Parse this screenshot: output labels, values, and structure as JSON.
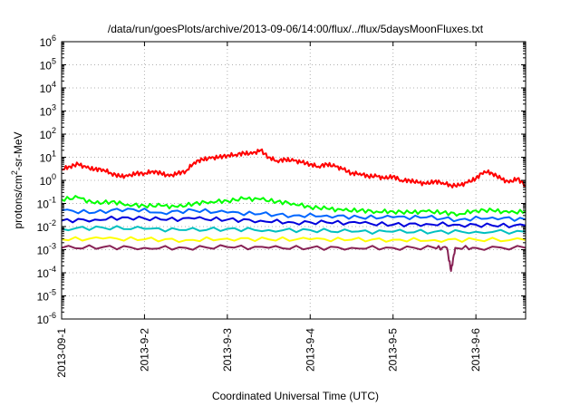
{
  "chart_data": {
    "type": "line",
    "title": "/data/run/goesPlots/archive/2013-09-06/14:00/flux/../flux/5daysMoonFluxes.txt",
    "xlabel": "Coordinated Universal Time (UTC)",
    "ylabel": "protons/cm2-sr-MeV",
    "ylabel_parts": {
      "base": "protons/cm",
      "sup": "2",
      "rest": "-sr-MeV"
    },
    "x_tick_labels": [
      "2013-09-1",
      "2013-9-2",
      "2013-9-3",
      "2013-9-4",
      "2013-9-5",
      "2013-9-6"
    ],
    "x_range_days": [
      0,
      5.6
    ],
    "y_scale": "log",
    "y_range_exponent": [
      -6,
      6
    ],
    "y_tick_base": "10",
    "y_tick_exponents": [
      "-6",
      "-5",
      "-4",
      "-3",
      "-2",
      "-1",
      "0",
      "1",
      "2",
      "3",
      "4",
      "5",
      "6"
    ],
    "grid": true,
    "series": [
      {
        "color": "#ff0000",
        "x": [
          0,
          0.1,
          0.2,
          0.3,
          0.4,
          0.5,
          0.6,
          0.7,
          0.8,
          0.9,
          1.0,
          1.1,
          1.2,
          1.3,
          1.4,
          1.5,
          1.6,
          1.7,
          1.8,
          1.9,
          2.0,
          2.1,
          2.2,
          2.3,
          2.4,
          2.5,
          2.6,
          2.7,
          2.8,
          2.9,
          3.0,
          3.1,
          3.2,
          3.3,
          3.4,
          3.5,
          3.6,
          3.7,
          3.8,
          3.9,
          4.0,
          4.1,
          4.2,
          4.3,
          4.4,
          4.5,
          4.6,
          4.7,
          4.8,
          4.9,
          5.0,
          5.1,
          5.2,
          5.3,
          5.4,
          5.5,
          5.6
        ],
        "y": [
          3,
          4,
          5,
          3.5,
          3,
          3,
          2,
          1.5,
          1.5,
          2,
          2,
          2.5,
          2,
          1.5,
          2,
          2.5,
          6,
          8,
          9,
          10,
          12,
          13,
          15,
          14,
          20,
          10,
          7,
          8,
          7,
          6,
          5,
          4,
          5,
          4,
          3,
          2,
          2,
          1.5,
          1.5,
          1.2,
          1.5,
          1,
          1,
          0.8,
          0.7,
          0.9,
          0.8,
          0.6,
          0.6,
          0.8,
          1.2,
          2.5,
          2,
          1.2,
          0.8,
          1.2,
          0.6
        ]
      },
      {
        "color": "#00ff00",
        "x": [
          0,
          0.2,
          0.4,
          0.6,
          0.8,
          1.0,
          1.2,
          1.4,
          1.6,
          1.8,
          2.0,
          2.2,
          2.4,
          2.6,
          2.8,
          3.0,
          3.2,
          3.4,
          3.6,
          3.8,
          4.0,
          4.2,
          4.4,
          4.6,
          4.8,
          5.0,
          5.2,
          5.4,
          5.6
        ],
        "y": [
          0.15,
          0.18,
          0.1,
          0.12,
          0.09,
          0.08,
          0.08,
          0.07,
          0.1,
          0.12,
          0.13,
          0.16,
          0.15,
          0.12,
          0.1,
          0.07,
          0.06,
          0.05,
          0.05,
          0.045,
          0.045,
          0.04,
          0.045,
          0.04,
          0.035,
          0.05,
          0.05,
          0.04,
          0.045
        ]
      },
      {
        "color": "#0066ff",
        "x": [
          0,
          0.4,
          0.8,
          1.2,
          1.6,
          2.0,
          2.4,
          2.8,
          3.2,
          3.6,
          4.0,
          4.4,
          4.8,
          5.2,
          5.6
        ],
        "y": [
          0.05,
          0.04,
          0.06,
          0.04,
          0.05,
          0.04,
          0.035,
          0.03,
          0.03,
          0.025,
          0.025,
          0.025,
          0.02,
          0.025,
          0.02
        ]
      },
      {
        "color": "#0000dd",
        "x": [
          0,
          0.4,
          0.8,
          1.2,
          1.6,
          2.0,
          2.4,
          2.8,
          3.2,
          3.6,
          4.0,
          4.4,
          4.8,
          5.2,
          5.6
        ],
        "y": [
          0.018,
          0.02,
          0.025,
          0.02,
          0.022,
          0.02,
          0.018,
          0.015,
          0.015,
          0.014,
          0.012,
          0.013,
          0.012,
          0.011,
          0.011
        ]
      },
      {
        "color": "#00c0c0",
        "x": [
          0,
          0.5,
          1.0,
          1.5,
          2.0,
          2.5,
          3.0,
          3.5,
          4.0,
          4.5,
          5.0,
          5.6
        ],
        "y": [
          0.008,
          0.009,
          0.008,
          0.007,
          0.008,
          0.007,
          0.007,
          0.006,
          0.006,
          0.006,
          0.006,
          0.006
        ]
      },
      {
        "color": "#ffff00",
        "x": [
          0,
          0.5,
          1.0,
          1.5,
          2.0,
          2.5,
          3.0,
          3.5,
          4.0,
          4.5,
          5.0,
          5.6
        ],
        "y": [
          0.0028,
          0.003,
          0.0028,
          0.0026,
          0.003,
          0.0028,
          0.0028,
          0.0027,
          0.0027,
          0.0026,
          0.0027,
          0.0026
        ]
      },
      {
        "color": "#882255",
        "x": [
          0,
          0.5,
          1.0,
          1.5,
          2.0,
          2.5,
          3.0,
          3.5,
          4.0,
          4.5,
          4.65,
          4.7,
          4.75,
          5.0,
          5.6
        ],
        "y": [
          0.0012,
          0.0013,
          0.0012,
          0.0012,
          0.0013,
          0.0012,
          0.0012,
          0.0012,
          0.0012,
          0.0012,
          0.0012,
          0.00012,
          0.0012,
          0.0012,
          0.0012
        ]
      }
    ]
  }
}
